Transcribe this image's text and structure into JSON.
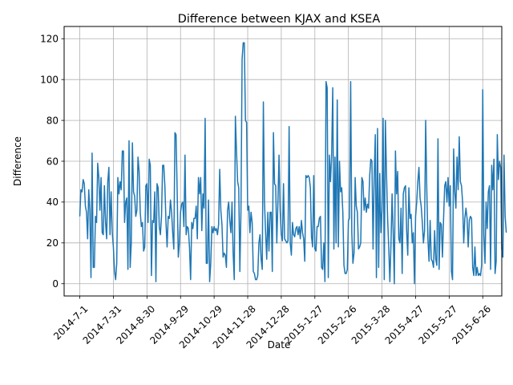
{
  "chart_data": {
    "type": "line",
    "title": "Difference between KJAX and KSEA",
    "xlabel": "Date",
    "ylabel": "Difference",
    "grid": true,
    "legend": "none",
    "x_start": "2014-7-1",
    "x_end": "2015-6-30",
    "xlim": [
      "2014-6-17",
      "2015-7-13"
    ],
    "ylim": [
      -6,
      126
    ],
    "x_ticks": [
      "2014-7-1",
      "2014-7-31",
      "2014-8-30",
      "2014-9-29",
      "2014-10-29",
      "2014-11-28",
      "2014-12-28",
      "2015-1-27",
      "2015-2-26",
      "2015-3-28",
      "2015-4-27",
      "2015-5-27",
      "2015-6-26"
    ],
    "y_ticks": [
      0,
      20,
      40,
      60,
      80,
      100,
      120
    ],
    "line_color": "#1f77b4",
    "series": [
      {
        "values": [
          33,
          46,
          45,
          51,
          49,
          38,
          35,
          22,
          46,
          36,
          3,
          64,
          8,
          8,
          33,
          30,
          59,
          52,
          36,
          52,
          25,
          24,
          48,
          30,
          22,
          50,
          57,
          24,
          45,
          25,
          18,
          6,
          2,
          10,
          52,
          44,
          50,
          46,
          65,
          65,
          30,
          40,
          42,
          7,
          70,
          8,
          20,
          69,
          45,
          43,
          33,
          36,
          62,
          55,
          35,
          28,
          30,
          16,
          18,
          48,
          49,
          30,
          61,
          58,
          4,
          31,
          30,
          45,
          1,
          49,
          47,
          28,
          24,
          33,
          58,
          58,
          48,
          30,
          18,
          33,
          32,
          41,
          35,
          25,
          17,
          74,
          73,
          45,
          13,
          20,
          35,
          39,
          40,
          28,
          63,
          24,
          28,
          27,
          18,
          2,
          30,
          27,
          32,
          32,
          38,
          22,
          52,
          44,
          52,
          26,
          44,
          37,
          81,
          10,
          10,
          41,
          1,
          10,
          28,
          25,
          28,
          26,
          27,
          24,
          29,
          56,
          36,
          29,
          13,
          15,
          14,
          8,
          36,
          40,
          31,
          25,
          40,
          15,
          2,
          82,
          65,
          50,
          47,
          6,
          36,
          110,
          118,
          118,
          80,
          79,
          36,
          38,
          25,
          35,
          30,
          6,
          5,
          2,
          2,
          4,
          20,
          24,
          12,
          7,
          89,
          40,
          25,
          12,
          35,
          16,
          35,
          35,
          6,
          74,
          49,
          48,
          20,
          40,
          63,
          36,
          24,
          21,
          49,
          22,
          21,
          20,
          21,
          77,
          20,
          14,
          30,
          24,
          23,
          27,
          28,
          24,
          28,
          22,
          31,
          25,
          22,
          11,
          53,
          52,
          53,
          52,
          47,
          23,
          18,
          53,
          17,
          16,
          28,
          28,
          32,
          33,
          8,
          7,
          20,
          1,
          99,
          96,
          3,
          63,
          50,
          63,
          96,
          17,
          62,
          20,
          90,
          18,
          60,
          45,
          47,
          35,
          9,
          5,
          5,
          7,
          31,
          32,
          99,
          25,
          10,
          15,
          52,
          38,
          35,
          17,
          18,
          20,
          52,
          50,
          36,
          42,
          35,
          39,
          37,
          53,
          61,
          60,
          17,
          52,
          73,
          3,
          76,
          8,
          54,
          25,
          36,
          81,
          2,
          80,
          54,
          32,
          18,
          1,
          19,
          44,
          25,
          0,
          65,
          44,
          55,
          22,
          20,
          37,
          5,
          44,
          47,
          48,
          26,
          14,
          47,
          32,
          34,
          20,
          25,
          0,
          33,
          40,
          50,
          57,
          42,
          38,
          30,
          20,
          26,
          80,
          46,
          22,
          11,
          31,
          12,
          11,
          8,
          26,
          12,
          9,
          71,
          7,
          30,
          29,
          13,
          32,
          48,
          50,
          40,
          52,
          38,
          48,
          6,
          2,
          66,
          45,
          37,
          62,
          46,
          72,
          50,
          48,
          40,
          20,
          32,
          37,
          32,
          18,
          31,
          33,
          32,
          8,
          4,
          18,
          4,
          8,
          4,
          5,
          4,
          9,
          95,
          24,
          10,
          40,
          27,
          45,
          48,
          7,
          58,
          46,
          61,
          5,
          11,
          73,
          51,
          60,
          57,
          17,
          13,
          63,
          33,
          25
        ]
      }
    ]
  }
}
